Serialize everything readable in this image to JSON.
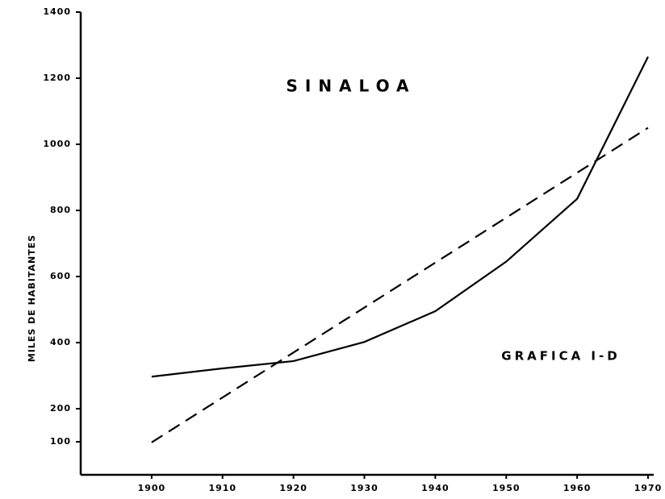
{
  "chart_data": {
    "type": "line",
    "title": "SINALOA",
    "annotation": "GRAFICA I-D",
    "y_label": "MILES DE HABITANTES",
    "xlim": [
      1890,
      1970
    ],
    "xticks": [
      1900,
      1910,
      1920,
      1930,
      1940,
      1950,
      1960,
      1970
    ],
    "ylim": [
      0,
      1400
    ],
    "yticks": [
      100,
      200,
      400,
      600,
      800,
      1000,
      1200,
      1400
    ],
    "series": [
      {
        "color": "#000000",
        "dashed": false,
        "x": [
          1900,
          1910,
          1920,
          1930,
          1940,
          1950,
          1960,
          1970
        ],
        "values": [
          297,
          322,
          344,
          402,
          495,
          645,
          835,
          1265
        ]
      },
      {
        "color": "#000000",
        "dashed": true,
        "x": [
          1900,
          1970
        ],
        "values": [
          98,
          1050
        ]
      }
    ]
  }
}
